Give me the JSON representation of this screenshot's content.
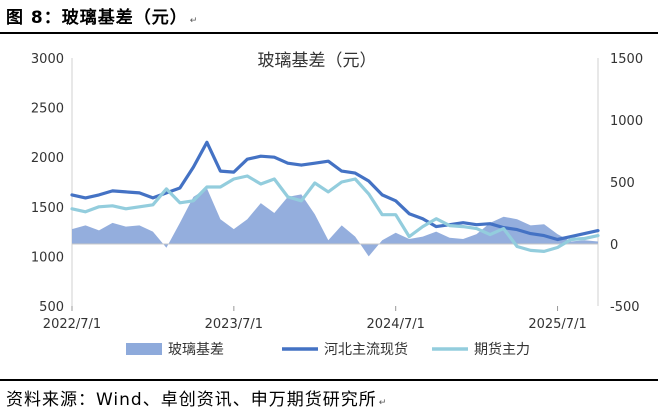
{
  "header": {
    "figure_label": "图 8：玻璃基差（元）",
    "return_mark": "↵"
  },
  "footer": {
    "source": "资料来源：Wind、卓创资讯、申万期货研究所",
    "return_mark": "↵"
  },
  "colors": {
    "spread": "#8EAADB",
    "spot": "#4472C4",
    "futures": "#93CDDD"
  },
  "chart_data": {
    "type": "line",
    "title": "玻璃基差（元）",
    "x_ticks": [
      "2022/7/1",
      "2023/7/1",
      "2024/7/1",
      "2025/7/1"
    ],
    "x_range": [
      "2022/7/1",
      "2025/10/1"
    ],
    "y_left": {
      "lim": [
        500,
        3000
      ],
      "ticks": [
        "500",
        "1000",
        "1500",
        "2000",
        "2500",
        "3000"
      ]
    },
    "y_right": {
      "lim": [
        -500,
        1500
      ],
      "ticks": [
        "-500",
        "0",
        "500",
        "1000",
        "1500"
      ]
    },
    "grid": false,
    "legend": "bottom",
    "x": [
      "2022-07",
      "2022-08",
      "2022-09",
      "2022-10",
      "2022-11",
      "2022-12",
      "2023-01",
      "2023-02",
      "2023-03",
      "2023-04",
      "2023-05",
      "2023-06",
      "2023-07",
      "2023-08",
      "2023-09",
      "2023-10",
      "2023-11",
      "2023-12",
      "2024-01",
      "2024-02",
      "2024-03",
      "2024-04",
      "2024-05",
      "2024-06",
      "2024-07",
      "2024-08",
      "2024-09",
      "2024-10",
      "2024-11",
      "2024-12",
      "2025-01",
      "2025-02",
      "2025-03",
      "2025-04",
      "2025-05",
      "2025-06",
      "2025-07",
      "2025-08",
      "2025-09",
      "2025-10"
    ],
    "series": [
      {
        "name": "玻璃基差",
        "axis": "right",
        "kind": "area",
        "values": [
          120,
          150,
          110,
          170,
          140,
          150,
          100,
          -30,
          170,
          380,
          450,
          200,
          120,
          200,
          330,
          250,
          380,
          400,
          240,
          30,
          150,
          60,
          -100,
          30,
          90,
          40,
          60,
          100,
          50,
          40,
          80,
          170,
          220,
          200,
          150,
          160,
          80,
          20,
          30,
          20
        ]
      },
      {
        "name": "河北主流现货",
        "axis": "left",
        "kind": "line",
        "values": [
          1620,
          1590,
          1620,
          1660,
          1650,
          1640,
          1590,
          1640,
          1690,
          1900,
          2150,
          1860,
          1850,
          1980,
          2010,
          2000,
          1940,
          1920,
          1940,
          1960,
          1860,
          1840,
          1760,
          1620,
          1560,
          1430,
          1380,
          1300,
          1320,
          1340,
          1320,
          1330,
          1290,
          1270,
          1230,
          1210,
          1170,
          1200,
          1230,
          1260
        ]
      },
      {
        "name": "期货主力",
        "axis": "left",
        "kind": "line",
        "values": [
          1480,
          1450,
          1500,
          1510,
          1480,
          1500,
          1520,
          1680,
          1540,
          1560,
          1700,
          1700,
          1780,
          1810,
          1730,
          1780,
          1600,
          1560,
          1740,
          1650,
          1750,
          1780,
          1630,
          1420,
          1420,
          1200,
          1300,
          1380,
          1310,
          1300,
          1280,
          1220,
          1280,
          1100,
          1060,
          1050,
          1090,
          1170,
          1180,
          1210
        ]
      }
    ]
  }
}
